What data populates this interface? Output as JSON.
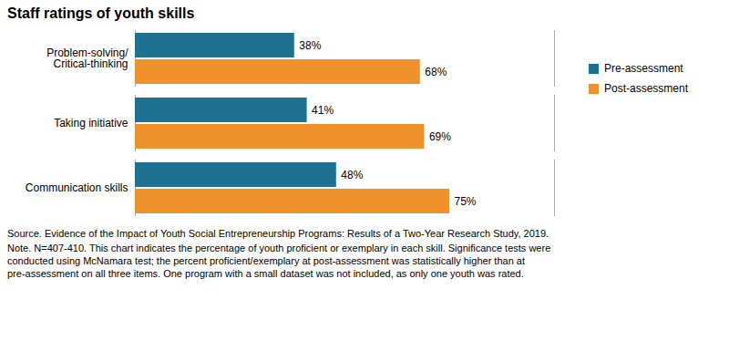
{
  "chart_data": {
    "type": "bar",
    "orientation": "horizontal",
    "title": "Staff ratings of youth skills",
    "categories": [
      "Problem-solving/\nCritical-thinking",
      "Taking initiative",
      "Communication skills"
    ],
    "series": [
      {
        "name": "Pre-assessment",
        "color": "#1f7191",
        "values": [
          38,
          41,
          48
        ],
        "value_labels": [
          "38%",
          "41%",
          "48%"
        ]
      },
      {
        "name": "Post-assessment",
        "color": "#f0922b",
        "values": [
          68,
          69,
          75
        ],
        "value_labels": [
          "68%",
          "69%",
          "75%"
        ]
      }
    ],
    "xlim": [
      0,
      100
    ],
    "data_labels": true,
    "tick_labels": "y",
    "grid": false,
    "legend": "upper right",
    "annotations": [
      "Source. Evidence of the Impact of Youth Social Entrepreneurship Programs: Results of a Two-Year Research Study, 2019.",
      "Note. N=407-410. This chart indicates the percentage of youth proficient or exemplary in each skill. Significance tests were\nconducted using McNamara test; the percent proficient/exemplary at post-assessment was statistically higher than at\npre-assessment on all three items. One program with a small dataset was not included, as only one youth was rated."
    ]
  }
}
